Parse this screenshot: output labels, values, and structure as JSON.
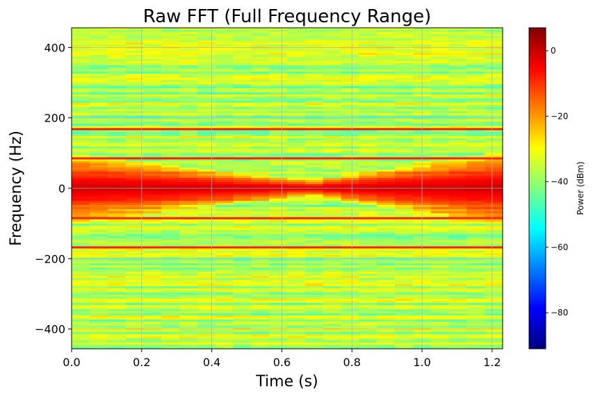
{
  "chart_data": {
    "type": "heatmap",
    "title": "Raw FFT (Full Frequency Range)",
    "xlabel": "Time (s)",
    "ylabel": "Frequency (Hz)",
    "xlim": [
      0.0,
      1.23
    ],
    "ylim": [
      -456,
      456
    ],
    "grid": true,
    "colormap": "jet",
    "x_ticks": [
      0.0,
      0.2,
      0.4,
      0.6,
      0.8,
      1.0,
      1.2
    ],
    "x_tick_labels": [
      "0.0",
      "0.2",
      "0.4",
      "0.6",
      "0.8",
      "1.0",
      "1.2"
    ],
    "y_ticks": [
      400,
      200,
      0,
      -200,
      -400
    ],
    "y_tick_labels": [
      "400",
      "200",
      "0",
      "−200",
      "−400"
    ],
    "colorbar": {
      "label": "Power (dBm)",
      "range": [
        -91,
        7
      ],
      "ticks": [
        0,
        -20,
        -40,
        -60,
        -80
      ],
      "tick_labels": [
        "0",
        "−20",
        "−40",
        "−60",
        "−80"
      ]
    },
    "background_power_dbm": -37,
    "strong_lines_hz": [
      {
        "frequency": 168,
        "power_dbm": -8
      },
      {
        "frequency": 85,
        "power_dbm": -8
      },
      {
        "frequency": -85,
        "power_dbm": -8
      },
      {
        "frequency": -168,
        "power_dbm": -8
      }
    ],
    "central_band": {
      "center_hz": 0,
      "power_dbm": 0,
      "halfwidth_at_start_hz": 55,
      "halfwidth_min_hz": 12,
      "time_of_min_s": 0.68,
      "halfwidth_at_end_hz": 60
    }
  },
  "colors": {
    "grid": "#b0b0b0",
    "axis": "#000000"
  }
}
